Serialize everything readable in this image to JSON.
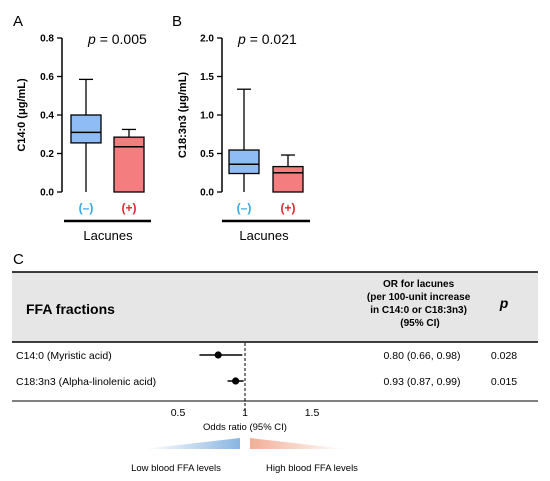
{
  "chart_data": [
    {
      "panel": "A",
      "type": "box",
      "p_value_text": "= 0.005",
      "p_symbol": "p",
      "ylabel": "C14:0 (μg/mL)",
      "ylim": [
        0,
        0.8
      ],
      "yticks": [
        "0.0",
        "0.2",
        "0.4",
        "0.6",
        "0.8"
      ],
      "yticks_values": [
        0,
        0.2,
        0.4,
        0.6,
        0.8
      ],
      "xgroup_label": "Lacunes",
      "categories": [
        "(–)",
        "(+)"
      ],
      "boxes": [
        {
          "category": "(–)",
          "min": 0.0,
          "q1": 0.255,
          "median": 0.31,
          "q3": 0.4,
          "max": 0.585,
          "color": "#8fbcf4"
        },
        {
          "category": "(+)",
          "min": 0.0,
          "q1": 0.0,
          "median": 0.235,
          "q3": 0.285,
          "max": 0.325,
          "color": "#f47d80"
        }
      ],
      "category_colors": [
        "#35a8e0",
        "#e0262b"
      ]
    },
    {
      "panel": "B",
      "type": "box",
      "p_value_text": "= 0.021",
      "p_symbol": "p",
      "ylabel": "C18:3n3 (μg/mL)",
      "ylim": [
        0,
        2.0
      ],
      "yticks": [
        "0.0",
        "0.5",
        "1.0",
        "1.5",
        "2.0"
      ],
      "yticks_values": [
        0,
        0.5,
        1.0,
        1.5,
        2.0
      ],
      "xgroup_label": "Lacunes",
      "categories": [
        "(–)",
        "(+)"
      ],
      "boxes": [
        {
          "category": "(–)",
          "min": 0.0,
          "q1": 0.24,
          "median": 0.36,
          "q3": 0.545,
          "max": 1.335,
          "color": "#8fbcf4"
        },
        {
          "category": "(+)",
          "min": 0.0,
          "q1": 0.0,
          "median": 0.25,
          "q3": 0.33,
          "max": 0.48,
          "color": "#f47d80"
        }
      ],
      "category_colors": [
        "#35a8e0",
        "#e0262b"
      ]
    },
    {
      "panel": "C",
      "type": "forest",
      "header": {
        "fraction_label": "FFA fractions",
        "or_label_lines": [
          "OR for lacunes",
          "(per 100-unit increase",
          "in C14:0 or C18:3n3)",
          "(95% CI)"
        ],
        "p_label": "p"
      },
      "rows": [
        {
          "name": "C14:0 (Myristic acid)",
          "or": 0.8,
          "lo": 0.66,
          "hi": 0.98,
          "or_text": "0.80 (0.66, 0.98)",
          "p_text": "0.028"
        },
        {
          "name": "C18:3n3 (Alpha-linolenic acid)",
          "or": 0.93,
          "lo": 0.87,
          "hi": 0.99,
          "or_text": "0.93 (0.87, 0.99)",
          "p_text": "0.015"
        }
      ],
      "xlim": [
        0.5,
        1.5
      ],
      "xticks": [
        "0.5",
        "1",
        "1.5"
      ],
      "xticks_values": [
        0.5,
        1.0,
        1.5
      ],
      "reference_line": 1.0,
      "xlabel": "Odds ratio (95% CI)",
      "low_label": "Low blood FFA levels",
      "high_label": "High blood FFA levels",
      "low_color": "#8ab6e2",
      "high_color": "#f2ae96",
      "header_bg": "#e6e6e6"
    }
  ]
}
